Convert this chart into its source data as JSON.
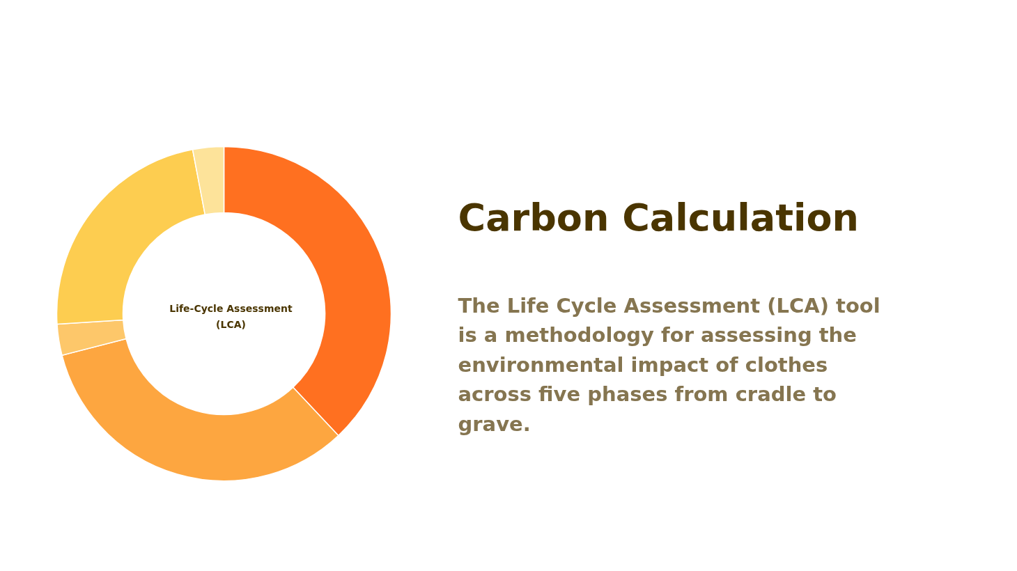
{
  "chart_data": {
    "type": "donut",
    "title": "Carbon Calculation",
    "subtitle": "The Life Cycle Assessment (LCA) tool is a methodology for assessing the environmental impact of clothes across five phases from cradle to grave.",
    "categories": [
      null,
      null,
      null,
      null,
      null
    ],
    "values": [
      38,
      33,
      3,
      23,
      3
    ],
    "colors": [
      "#ff7020",
      "#fda640",
      "#fdc76a",
      "#fdcd50",
      "#fde39a"
    ],
    "annotations": [
      "Life-Cycle Assessment (LCA)"
    ]
  }
}
